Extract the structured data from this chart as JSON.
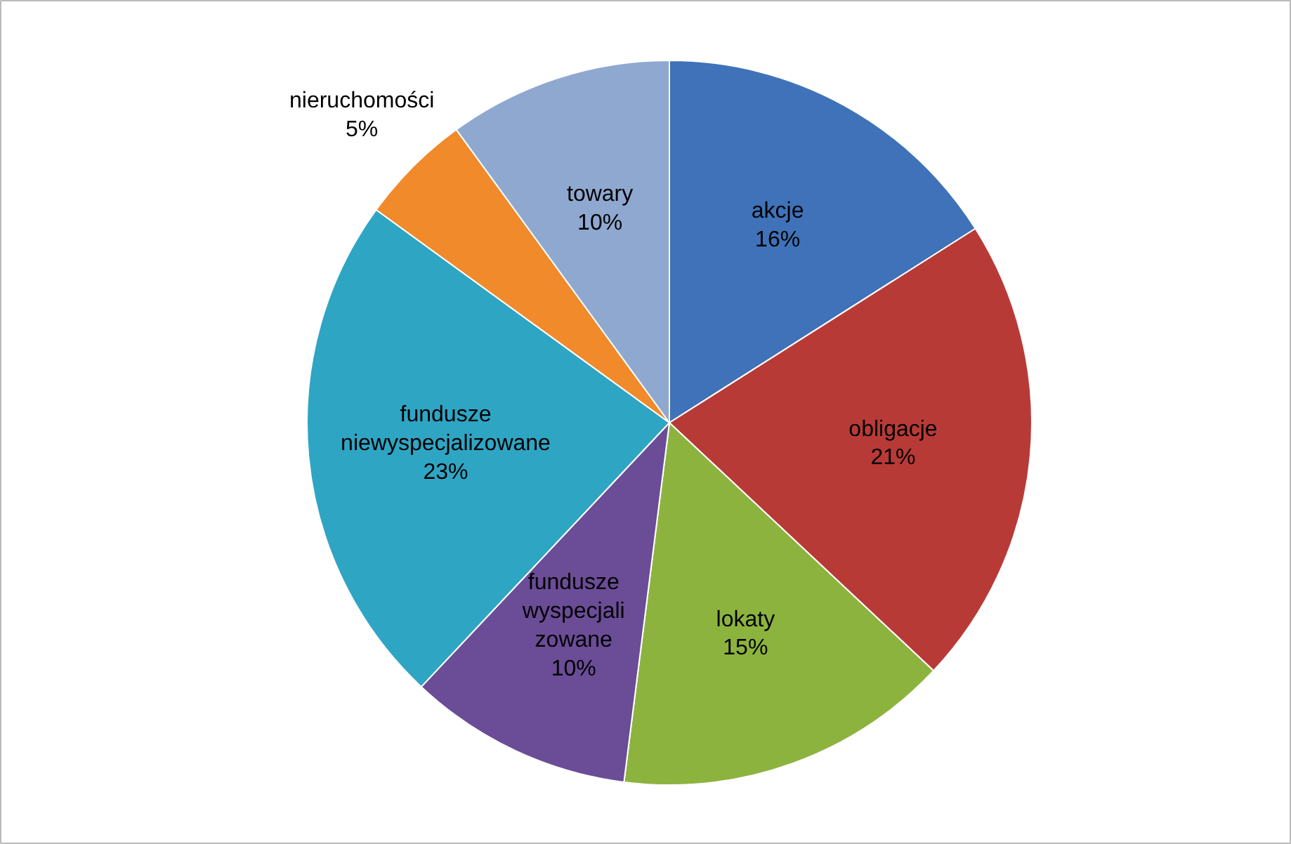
{
  "chart_data": {
    "type": "pie",
    "categories": [
      "akcje",
      "obligacje",
      "lokaty",
      "fundusze\nwyspecjali\nzowane",
      "fundusze\nniewyspecjalizowane",
      "nieruchomości",
      "towary"
    ],
    "values": [
      16,
      21,
      15,
      10,
      23,
      5,
      10
    ],
    "value_labels": [
      "16%",
      "21%",
      "15%",
      "10%",
      "23%",
      "5%",
      "10%"
    ],
    "colors": [
      "#3f72b8",
      "#b83a37",
      "#8db33f",
      "#6b4c96",
      "#2fa5c4",
      "#f08a2a",
      "#8fa8d0"
    ]
  }
}
